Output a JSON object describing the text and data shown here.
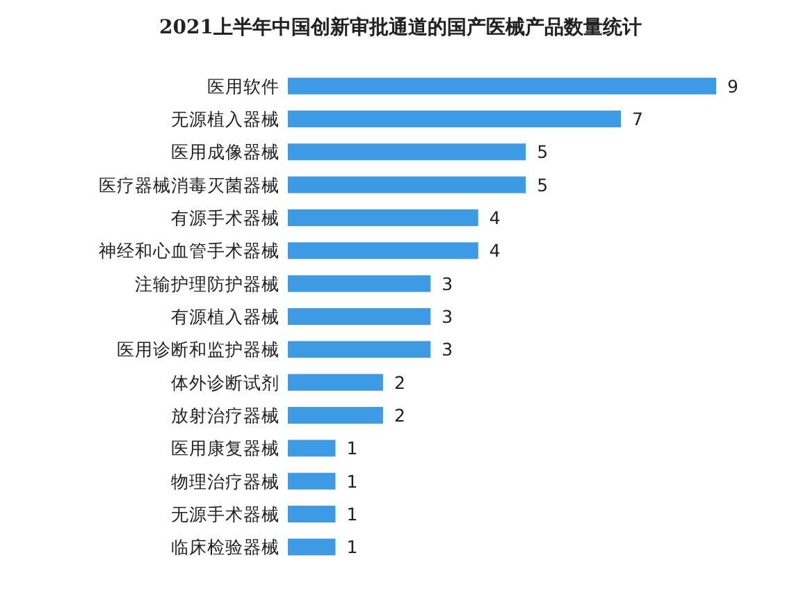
{
  "chart_data": {
    "type": "bar",
    "orientation": "horizontal",
    "title": "2021上半年中国创新审批通道的国产医械产品数量统计",
    "categories": [
      "医用软件",
      "无源植入器械",
      "医用成像器械",
      "医疗器械消毒灭菌器械",
      "有源手术器械",
      "神经和心血管手术器械",
      "注输护理防护器械",
      "有源植入器械",
      "医用诊断和监护器械",
      "体外诊断试剂",
      "放射治疗器械",
      "医用康复器械",
      "物理治疗器械",
      "无源手术器械",
      "临床检验器械"
    ],
    "values": [
      9,
      7,
      5,
      5,
      4,
      4,
      3,
      3,
      3,
      2,
      2,
      1,
      1,
      1,
      1
    ],
    "color": "#3d9be6",
    "data_labels": true
  }
}
